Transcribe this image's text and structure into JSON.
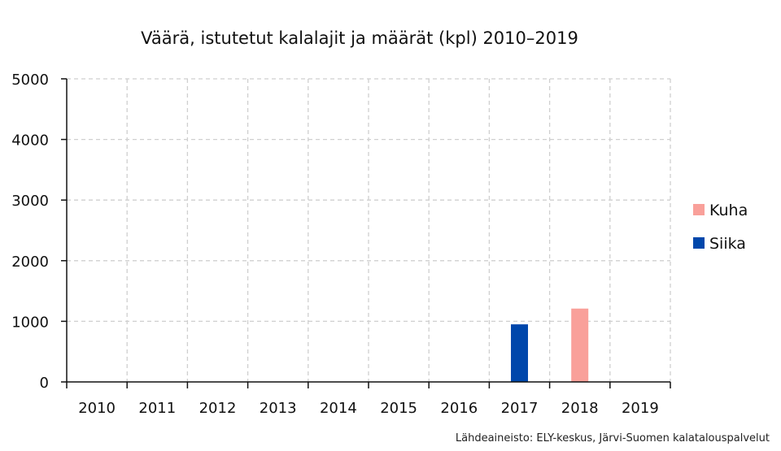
{
  "chart_data": {
    "type": "bar",
    "title": "Väärä, istutetut kalalajit ja määrät (kpl) 2010–2019",
    "categories": [
      "2010",
      "2011",
      "2012",
      "2013",
      "2014",
      "2015",
      "2016",
      "2017",
      "2018",
      "2019"
    ],
    "series": [
      {
        "name": "Kuha",
        "color": "#f9a09a",
        "values": [
          0,
          0,
          0,
          0,
          0,
          0,
          0,
          0,
          1210,
          0
        ]
      },
      {
        "name": "Siika",
        "color": "#0047ab",
        "values": [
          0,
          0,
          0,
          0,
          0,
          0,
          0,
          950,
          0,
          0
        ]
      }
    ],
    "ylim": [
      0,
      5000
    ],
    "yticks": [
      "0",
      "1000",
      "2000",
      "3000",
      "4000",
      "5000"
    ],
    "grid": true,
    "legend_position": "right",
    "source": "Lähdeaineisto: ELY-keskus, Järvi-Suomen kalatalouspalvelut"
  }
}
